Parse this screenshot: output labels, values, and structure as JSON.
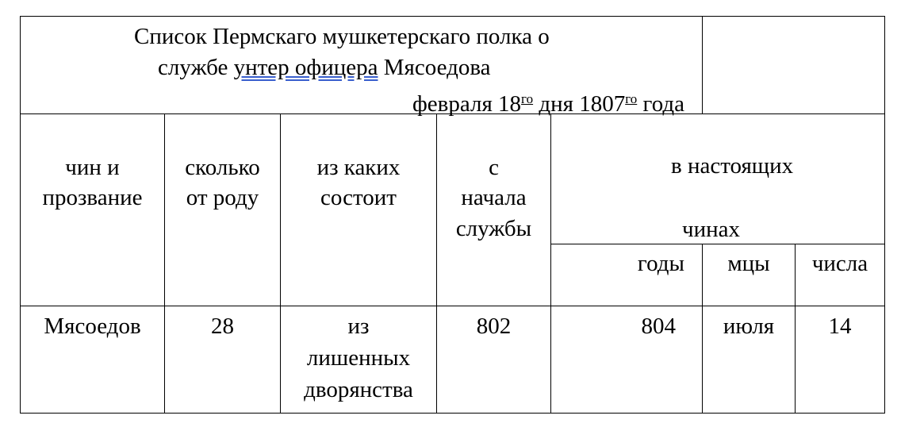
{
  "title": {
    "line1": "Список Пермскаго мушкетерскаго полка о",
    "line2_pre": "службе ",
    "line2_underlined": "унтер офицера",
    "line2_post": " Мясоедова",
    "line3_month": "февраля 18",
    "line3_sup1": "го",
    "line3_mid": " дня 1807",
    "line3_sup2": "го",
    "line3_end": " года"
  },
  "headers": {
    "rank": [
      "чин и",
      "прозвание"
    ],
    "age": [
      "сколько",
      "от роду"
    ],
    "origin": [
      "из каких",
      "состоит"
    ],
    "service_start": [
      "с",
      "начала",
      "службы"
    ],
    "current_rank": [
      "в настоящих",
      "чинах"
    ],
    "years": "годы",
    "months": "мцы",
    "days": "числа"
  },
  "rows": [
    {
      "name": "Мясоедов",
      "age": "28",
      "origin": [
        "из",
        "лишенных",
        "дворянства"
      ],
      "service_start": "802",
      "year": "804",
      "month": "июля",
      "day": "14"
    }
  ]
}
